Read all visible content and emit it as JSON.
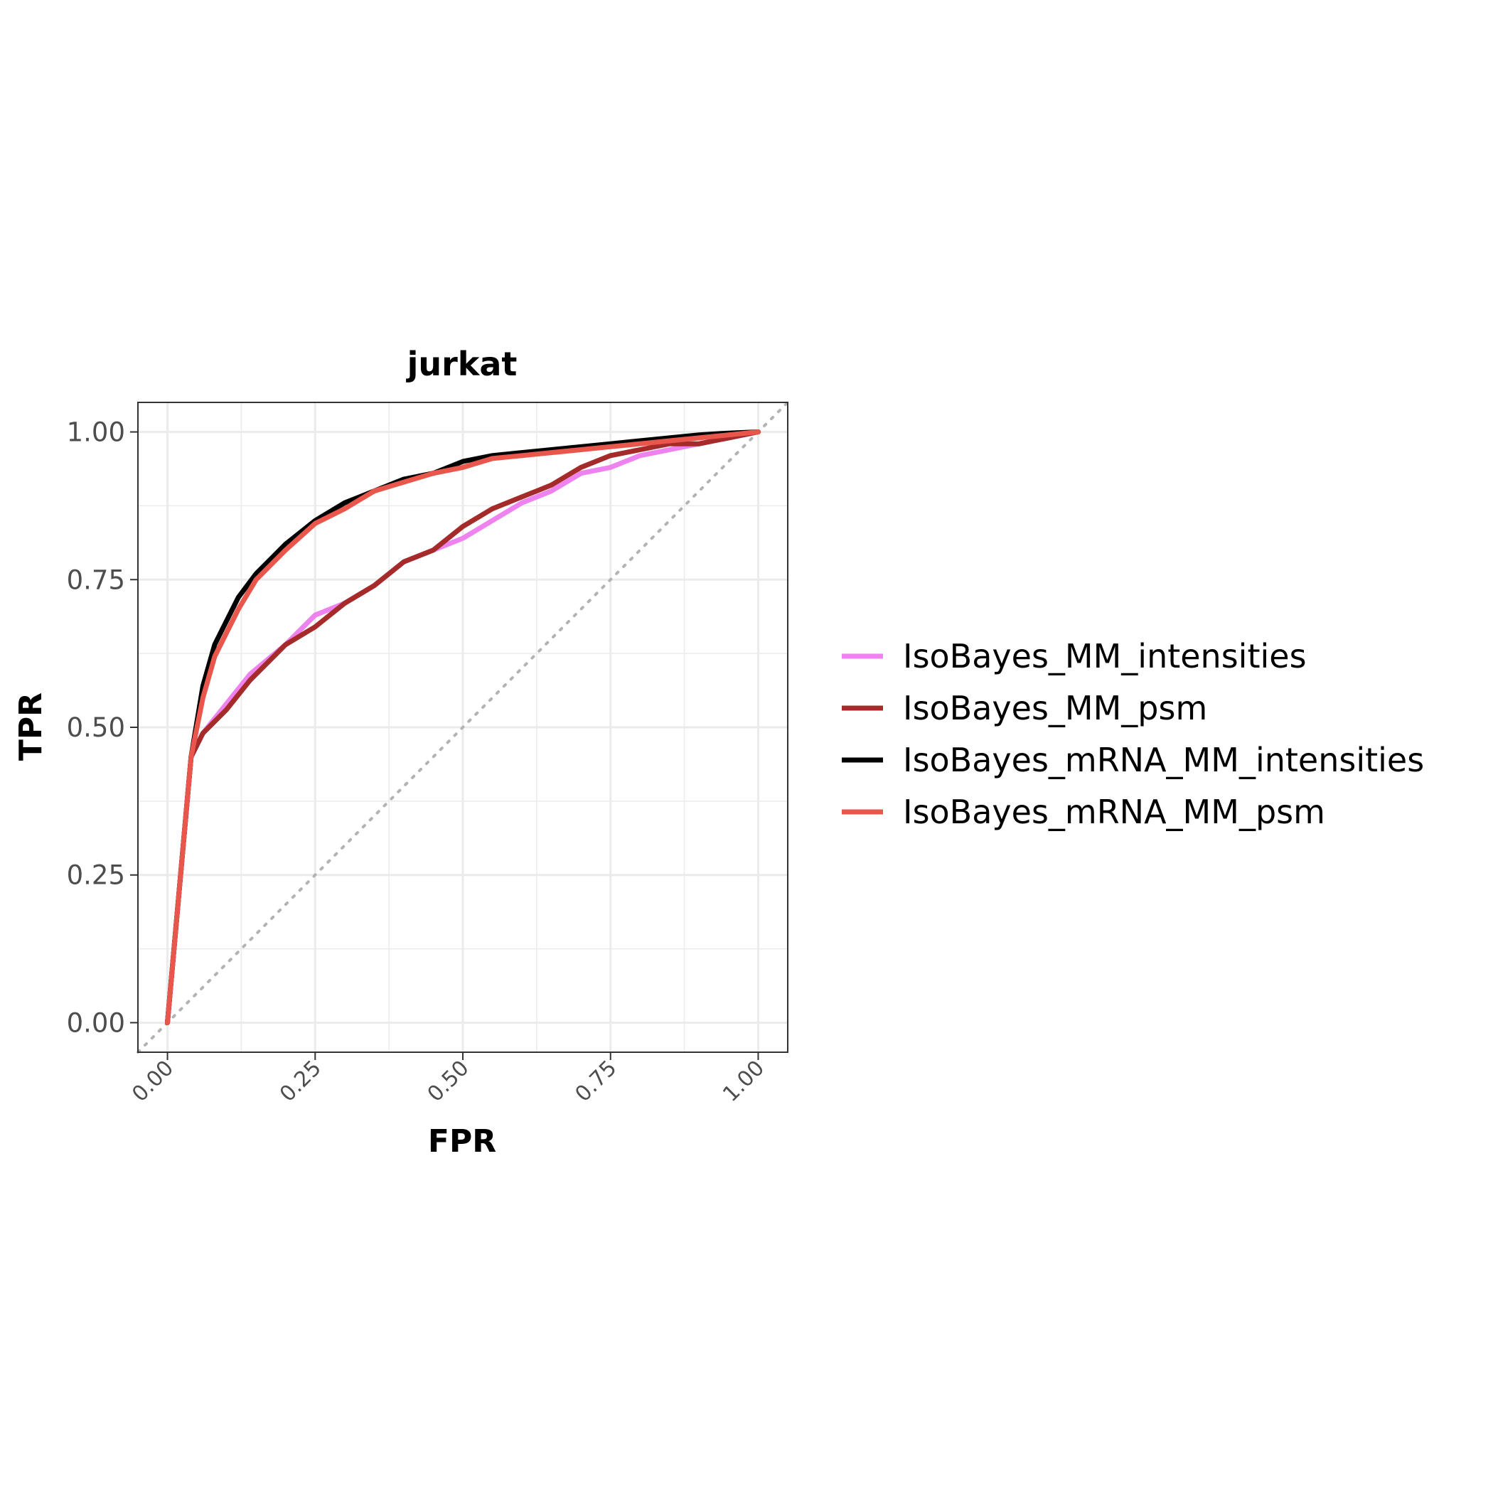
{
  "chart_data": {
    "type": "line",
    "title": "jurkat",
    "xlabel": "FPR",
    "ylabel": "TPR",
    "xlim": [
      -0.05,
      1.05
    ],
    "ylim": [
      -0.05,
      1.05
    ],
    "xticks": [
      "0.00",
      "0.25",
      "0.50",
      "0.75",
      "1.00"
    ],
    "yticks": [
      "0.00",
      "0.25",
      "0.50",
      "0.75",
      "1.00"
    ],
    "grid": true,
    "legend": "right",
    "reference_line": {
      "style": "dotted",
      "color": "#b3b3b3",
      "x": [
        -0.05,
        1.05
      ],
      "y": [
        -0.05,
        1.05
      ]
    },
    "series": [
      {
        "name": "IsoBayes_MM_intensities",
        "color": "#ee82ee",
        "x": [
          0,
          0.04,
          0.06,
          0.1,
          0.14,
          0.2,
          0.25,
          0.3,
          0.35,
          0.4,
          0.45,
          0.5,
          0.55,
          0.6,
          0.65,
          0.7,
          0.75,
          0.8,
          0.85,
          0.9,
          0.95,
          1.0
        ],
        "y": [
          0,
          0.45,
          0.49,
          0.54,
          0.59,
          0.64,
          0.69,
          0.71,
          0.74,
          0.78,
          0.8,
          0.82,
          0.85,
          0.88,
          0.9,
          0.93,
          0.94,
          0.96,
          0.97,
          0.98,
          0.99,
          1.0
        ]
      },
      {
        "name": "IsoBayes_MM_psm",
        "color": "#a52a2a",
        "x": [
          0,
          0.04,
          0.06,
          0.1,
          0.14,
          0.2,
          0.25,
          0.3,
          0.35,
          0.4,
          0.45,
          0.5,
          0.55,
          0.6,
          0.65,
          0.7,
          0.75,
          0.8,
          0.85,
          0.9,
          0.95,
          1.0
        ],
        "y": [
          0,
          0.45,
          0.49,
          0.53,
          0.58,
          0.64,
          0.67,
          0.71,
          0.74,
          0.78,
          0.8,
          0.84,
          0.87,
          0.89,
          0.91,
          0.94,
          0.96,
          0.97,
          0.98,
          0.98,
          0.99,
          1.0
        ]
      },
      {
        "name": "IsoBayes_mRNA_MM_intensities",
        "color": "#000000",
        "x": [
          0,
          0.04,
          0.06,
          0.08,
          0.1,
          0.12,
          0.15,
          0.2,
          0.25,
          0.3,
          0.35,
          0.4,
          0.45,
          0.5,
          0.55,
          0.6,
          0.65,
          0.7,
          0.75,
          0.8,
          0.85,
          0.9,
          0.95,
          1.0
        ],
        "y": [
          0,
          0.45,
          0.57,
          0.64,
          0.68,
          0.72,
          0.76,
          0.81,
          0.85,
          0.88,
          0.9,
          0.92,
          0.93,
          0.95,
          0.96,
          0.965,
          0.97,
          0.975,
          0.98,
          0.985,
          0.99,
          0.995,
          0.998,
          1.0
        ]
      },
      {
        "name": "IsoBayes_mRNA_MM_psm",
        "color": "#e9564b",
        "x": [
          0,
          0.04,
          0.06,
          0.08,
          0.1,
          0.12,
          0.15,
          0.2,
          0.25,
          0.3,
          0.35,
          0.4,
          0.45,
          0.5,
          0.55,
          0.6,
          0.65,
          0.7,
          0.75,
          0.8,
          0.85,
          0.9,
          0.95,
          1.0
        ],
        "y": [
          0,
          0.45,
          0.55,
          0.62,
          0.66,
          0.7,
          0.75,
          0.8,
          0.845,
          0.87,
          0.9,
          0.915,
          0.93,
          0.94,
          0.955,
          0.96,
          0.965,
          0.97,
          0.975,
          0.98,
          0.985,
          0.99,
          0.995,
          1.0
        ]
      }
    ]
  }
}
